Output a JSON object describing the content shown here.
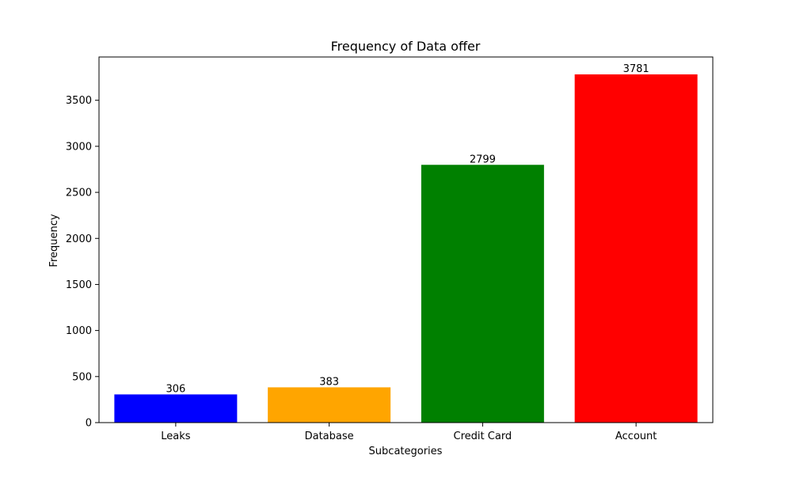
{
  "chart_data": {
    "type": "bar",
    "title": "Frequency of Data offer",
    "xlabel": "Subcategories",
    "ylabel": "Frequency",
    "categories": [
      "Leaks",
      "Database",
      "Credit Card",
      "Account"
    ],
    "values": [
      306,
      383,
      2799,
      3781
    ],
    "colors": [
      "#0000ff",
      "#ffa500",
      "#008000",
      "#ff0000"
    ],
    "ylim": [
      0,
      3970
    ],
    "yticks": [
      0,
      500,
      1000,
      1500,
      2000,
      2500,
      3000,
      3500
    ],
    "grid": false,
    "legend": "none"
  }
}
